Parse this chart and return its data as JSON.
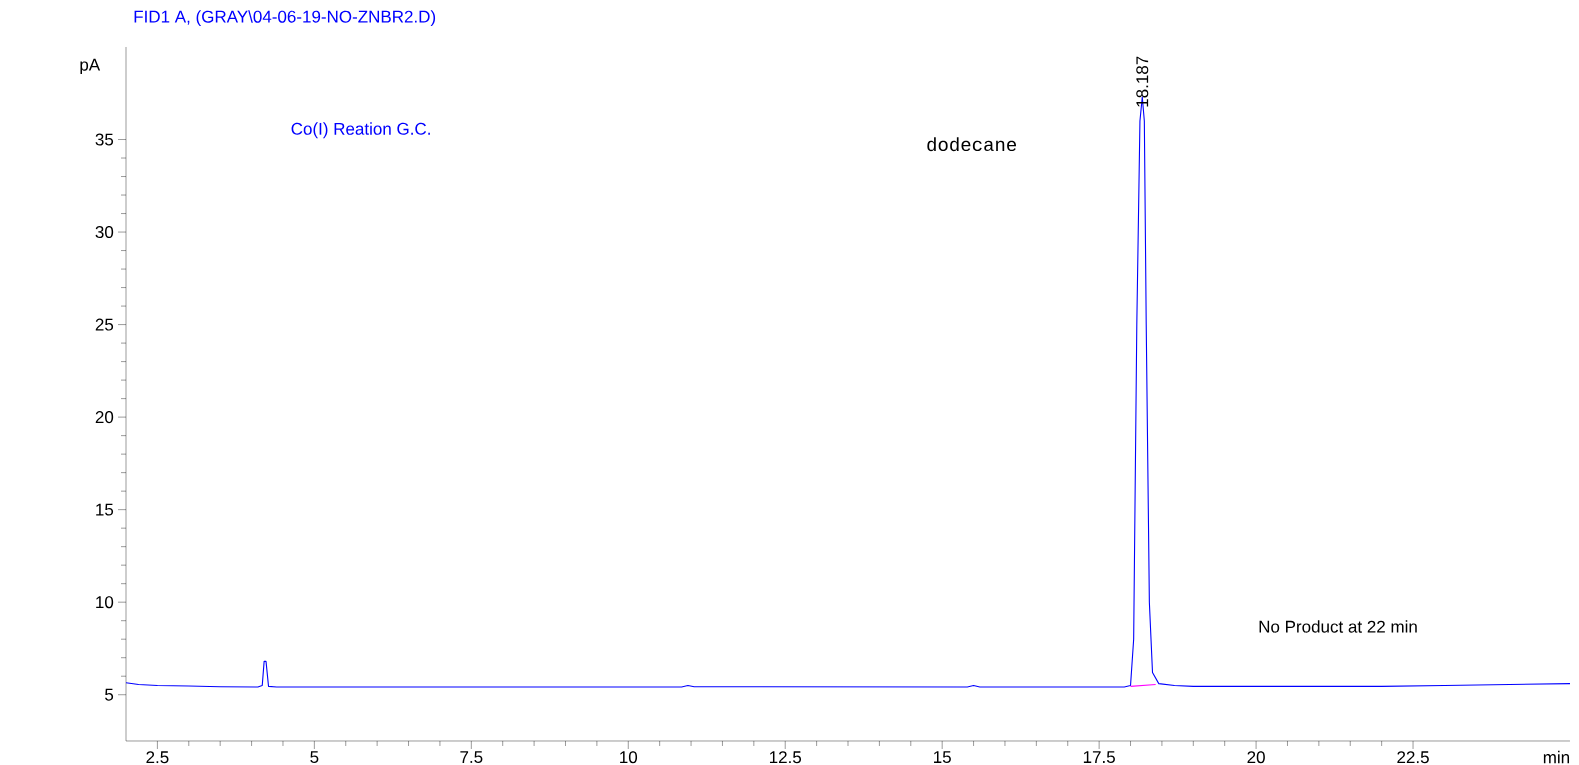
{
  "chart_data": {
    "type": "line",
    "title": "FID1 A,  (GRAY\\04-06-19-NO-ZNBR2.D)",
    "xlabel": "min",
    "ylabel": "pA",
    "series": [
      {
        "color": "#0000ff",
        "x": [
          2.0,
          2.2,
          2.5,
          3.0,
          3.5,
          4.1,
          4.17,
          4.2,
          4.23,
          4.27,
          4.4,
          10.85,
          10.95,
          11.05,
          15.4,
          15.5,
          15.6,
          17.9,
          18.0,
          18.05,
          18.1,
          18.15,
          18.187,
          18.22,
          18.25,
          18.3,
          18.35,
          18.45,
          18.7,
          19.0,
          20.0,
          22.0,
          23.0,
          24.0,
          25.0
        ],
        "values": [
          5.65,
          5.55,
          5.5,
          5.47,
          5.43,
          5.42,
          5.5,
          6.8,
          6.8,
          5.45,
          5.42,
          5.42,
          5.5,
          5.43,
          5.42,
          5.5,
          5.42,
          5.42,
          5.5,
          8,
          25,
          36,
          37.3,
          36,
          25,
          10,
          6.2,
          5.6,
          5.5,
          5.45,
          5.45,
          5.45,
          5.5,
          5.55,
          5.6
        ]
      },
      {
        "color": "#ff00ff",
        "x": [
          18.0,
          18.4
        ],
        "values": [
          5.45,
          5.55
        ]
      }
    ],
    "xlim": [
      2,
      25
    ],
    "ylim": [
      2.5,
      40
    ],
    "xticks": [
      2.5,
      5,
      7.5,
      10,
      12.5,
      15,
      17.5,
      20,
      22.5
    ],
    "yticks": [
      5,
      10,
      15,
      20,
      25,
      30,
      35
    ],
    "grid": false,
    "marker": "none",
    "line_style": "solid",
    "annotations": [
      "Co(I) Reation G.C.",
      "dodecane",
      "No Product at 22 min",
      {
        "text": "18.187",
        "x": 18.187,
        "y": 37.3
      }
    ]
  }
}
